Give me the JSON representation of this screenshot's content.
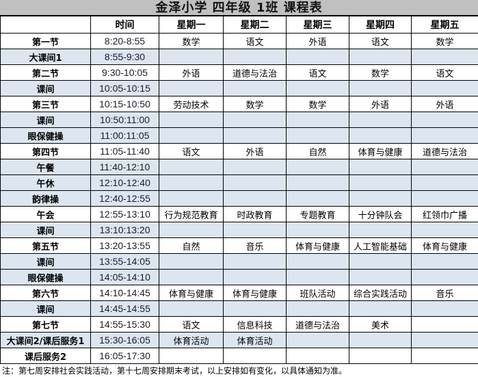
{
  "title": "金泽小学  四年级  1班  课程表",
  "headers": [
    "",
    "时间",
    "星期一",
    "星期二",
    "星期三",
    "星期四",
    "星期五"
  ],
  "colors": {
    "title_bg": "#c0c0c0",
    "break_row_bg": "#dce6f1"
  },
  "rows": [
    {
      "name": "第一节",
      "time": "8:20-8:55",
      "cells": [
        "数学",
        "语文",
        "外语",
        "语文",
        "数学"
      ],
      "shaded": false
    },
    {
      "name": "大课间1",
      "time": "8:55-9:30",
      "cells": [
        "",
        "",
        "",
        "",
        ""
      ],
      "shaded": true
    },
    {
      "name": "第二节",
      "time": "9:30-10:05",
      "cells": [
        "外语",
        "道德与法治",
        "语文",
        "数学",
        "语文"
      ],
      "shaded": false
    },
    {
      "name": "课间",
      "time": "10:05-10:15",
      "cells": [
        "",
        "",
        "",
        "",
        ""
      ],
      "shaded": true
    },
    {
      "name": "第三节",
      "time": "10:15-10:50",
      "cells": [
        "劳动技术",
        "数学",
        "数学",
        "外语",
        "外语"
      ],
      "shaded": false
    },
    {
      "name": "课间",
      "time": "10:50:11:00",
      "cells": [
        "",
        "",
        "",
        "",
        ""
      ],
      "shaded": true
    },
    {
      "name": "眼保健操",
      "time": "11:00:11:05",
      "cells": [
        "",
        "",
        "",
        "",
        ""
      ],
      "shaded": true
    },
    {
      "name": "第四节",
      "time": "11:05-11:40",
      "cells": [
        "语文",
        "外语",
        "自然",
        "体育与健康",
        "道德与法治"
      ],
      "shaded": false
    },
    {
      "name": "午餐",
      "time": "11:40-12:10",
      "cells": [
        "",
        "",
        "",
        "",
        ""
      ],
      "shaded": true
    },
    {
      "name": "午休",
      "time": "12:10-12:40",
      "cells": [
        "",
        "",
        "",
        "",
        ""
      ],
      "shaded": true
    },
    {
      "name": "韵律操",
      "time": "12:40-12:55",
      "cells": [
        "",
        "",
        "",
        "",
        ""
      ],
      "shaded": true
    },
    {
      "name": "午会",
      "time": "12:55-13:10",
      "cells": [
        "行为规范教育",
        "时政教育",
        "专题教育",
        "十分钟队会",
        "红领巾广播"
      ],
      "shaded": false
    },
    {
      "name": "课间",
      "time": "13:10:13:20",
      "cells": [
        "",
        "",
        "",
        "",
        ""
      ],
      "shaded": true
    },
    {
      "name": "第五节",
      "time": "13:20-13:55",
      "cells": [
        "自然",
        "音乐",
        "体育与健康",
        "人工智能基础",
        "体育与健康"
      ],
      "shaded": false
    },
    {
      "name": "课间",
      "time": "13:55-14:05",
      "cells": [
        "",
        "",
        "",
        "",
        ""
      ],
      "shaded": true
    },
    {
      "name": "眼保健操",
      "time": "14:05-14:10",
      "cells": [
        "",
        "",
        "",
        "",
        ""
      ],
      "shaded": true
    },
    {
      "name": "第六节",
      "time": "14:10-14:45",
      "cells": [
        "体育与健康",
        "体育与健康",
        "班队活动",
        "综合实践活动",
        "音乐"
      ],
      "shaded": false
    },
    {
      "name": "课间",
      "time": "14:45-14:55",
      "cells": [
        "",
        "",
        "",
        "",
        ""
      ],
      "shaded": true
    },
    {
      "name": "第七节",
      "time": "14:55-15:30",
      "cells": [
        "语文",
        "信息科技",
        "道德与法治",
        "美术",
        ""
      ],
      "shaded": false
    },
    {
      "name": "大课间2/课后服务1",
      "time": "15:30-16:05",
      "cells": [
        "体育活动",
        "体育活动",
        "",
        "",
        ""
      ],
      "shaded": true
    },
    {
      "name": "课后服务2",
      "time": "16:05-17:30",
      "cells": [
        "",
        "",
        "",
        "",
        ""
      ],
      "shaded": false
    }
  ],
  "note": "注：第七周安排社会实践活动，第十七周安排期末考试，以上安排如有变化，以具体通知为准。"
}
